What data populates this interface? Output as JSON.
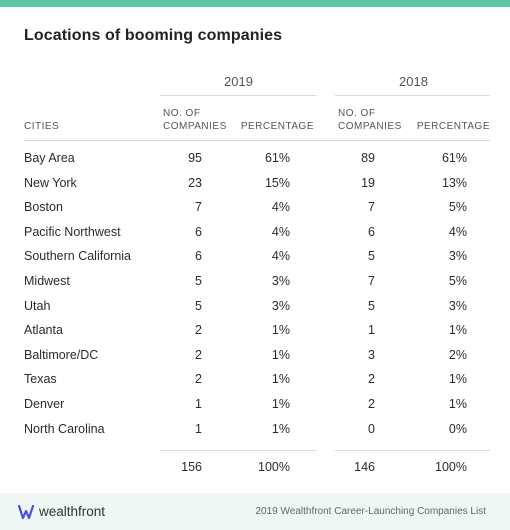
{
  "title": "Locations of booming companies",
  "chart_data": {
    "type": "table",
    "title": "Locations of booming companies",
    "years": [
      "2019",
      "2018"
    ],
    "columns": {
      "city": "CITIES",
      "count": [
        "NO. OF",
        "COMPANIES"
      ],
      "pct": "PERCENTAGE"
    },
    "rows": [
      {
        "city": "Bay Area",
        "n2019": "95",
        "p2019": "61%",
        "n2018": "89",
        "p2018": "61%"
      },
      {
        "city": "New York",
        "n2019": "23",
        "p2019": "15%",
        "n2018": "19",
        "p2018": "13%"
      },
      {
        "city": "Boston",
        "n2019": "7",
        "p2019": "4%",
        "n2018": "7",
        "p2018": "5%"
      },
      {
        "city": "Pacific Northwest",
        "n2019": "6",
        "p2019": "4%",
        "n2018": "6",
        "p2018": "4%"
      },
      {
        "city": "Southern California",
        "n2019": "6",
        "p2019": "4%",
        "n2018": "5",
        "p2018": "3%"
      },
      {
        "city": "Midwest",
        "n2019": "5",
        "p2019": "3%",
        "n2018": "7",
        "p2018": "5%"
      },
      {
        "city": "Utah",
        "n2019": "5",
        "p2019": "3%",
        "n2018": "5",
        "p2018": "3%"
      },
      {
        "city": "Atlanta",
        "n2019": "2",
        "p2019": "1%",
        "n2018": "1",
        "p2018": "1%"
      },
      {
        "city": "Baltimore/DC",
        "n2019": "2",
        "p2019": "1%",
        "n2018": "3",
        "p2018": "2%"
      },
      {
        "city": "Texas",
        "n2019": "2",
        "p2019": "1%",
        "n2018": "2",
        "p2018": "1%"
      },
      {
        "city": "Denver",
        "n2019": "1",
        "p2019": "1%",
        "n2018": "2",
        "p2018": "1%"
      },
      {
        "city": "North Carolina",
        "n2019": "1",
        "p2019": "1%",
        "n2018": "0",
        "p2018": "0%"
      }
    ],
    "totals": {
      "n2019": "156",
      "p2019": "100%",
      "n2018": "146",
      "p2018": "100%"
    }
  },
  "footer": {
    "brand": "wealthfront",
    "brand_icon": "wealthfront-logo-icon",
    "source": "2019 Wealthfront Career-Launching Companies List"
  },
  "colors": {
    "accent": "#5ec6a3",
    "footer_bg": "#eef7f3",
    "divider": "#d9d9d9"
  }
}
